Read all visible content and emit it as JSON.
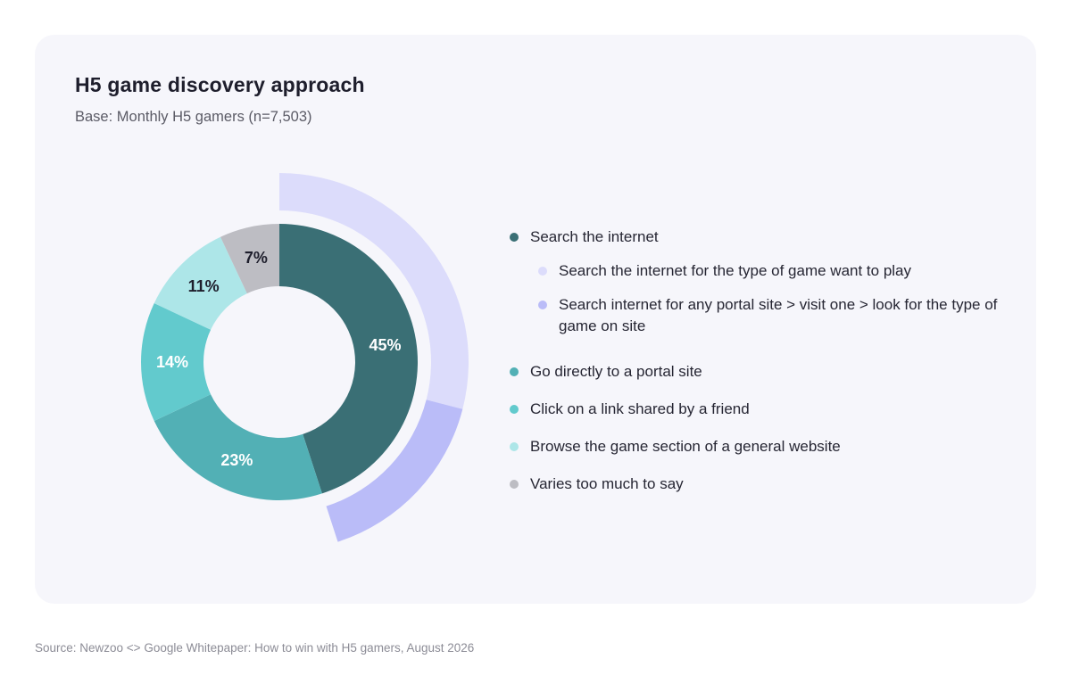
{
  "title": "H5 game discovery approach",
  "subtitle": "Base: Monthly H5 gamers (n=7,503)",
  "source": "Source: Newzoo <> Google Whitepaper: How to win with H5 gamers, August 2026",
  "legend": [
    {
      "label": "Search the internet",
      "color": "#3a6f75",
      "level": "main"
    },
    {
      "label": "Search the internet for the type of game want to play",
      "color": "#dcdcfb",
      "level": "sub"
    },
    {
      "label": "Search internet for any portal site > visit one > look for the type of game on site",
      "color": "#babcf8",
      "level": "sub"
    },
    {
      "label": "Go directly to a portal site",
      "color": "#52b0b5",
      "level": "main"
    },
    {
      "label": "Click on a link shared by a friend",
      "color": "#62cacd",
      "level": "main"
    },
    {
      "label": "Browse the game section of a general website",
      "color": "#ade6e8",
      "level": "main"
    },
    {
      "label": "Varies too much to say",
      "color": "#bdbdc3",
      "level": "main"
    }
  ],
  "chart_data": {
    "type": "pie",
    "title": "H5 game discovery approach",
    "inner_ring": {
      "slices": [
        {
          "name": "Search the internet",
          "value": 45,
          "label": "45%",
          "color": "#3a6f75"
        },
        {
          "name": "Go directly to a portal site",
          "value": 23,
          "label": "23%",
          "color": "#52b0b5"
        },
        {
          "name": "Click on a link shared by a friend",
          "value": 14,
          "label": "14%",
          "color": "#62cacd"
        },
        {
          "name": "Browse the game section of a general website",
          "value": 11,
          "label": "11%",
          "color": "#ade6e8"
        },
        {
          "name": "Varies too much to say",
          "value": 7,
          "label": "7%",
          "color": "#bdbdc3"
        }
      ],
      "label_colors": [
        "#ffffff",
        "#ffffff",
        "#ffffff",
        "#1e1e2c",
        "#1e1e2c"
      ]
    },
    "outer_ring": {
      "parent": "Search the internet",
      "slices": [
        {
          "name": "Search the internet for the type of game want to play",
          "value": 29,
          "color": "#dcdcfb"
        },
        {
          "name": "Search internet for any portal site > visit one > look for the type of game on site",
          "value": 16,
          "color": "#babcf8"
        }
      ]
    }
  }
}
